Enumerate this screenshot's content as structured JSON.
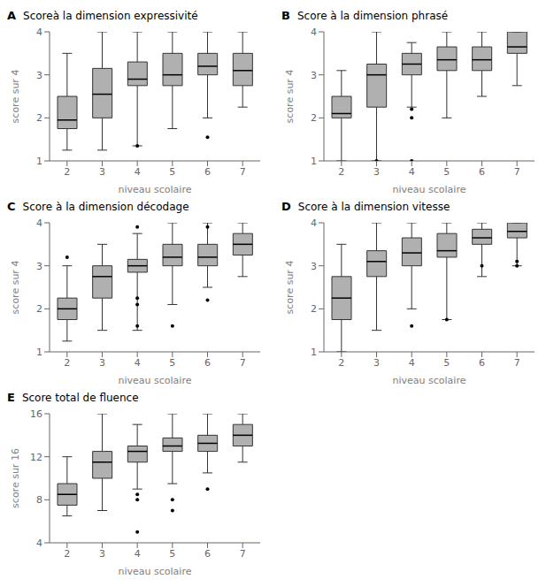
{
  "chart_data": [
    {
      "type": "box",
      "label": "A",
      "title": "Scoreà la dimension expressivité",
      "ylabel": "score sur 4",
      "xlabel": "niveau scolaire",
      "xlim": [
        1.5,
        7.5
      ],
      "xticks": [
        2,
        3,
        4,
        5,
        6,
        7
      ],
      "ylim": [
        1,
        4
      ],
      "yticks": [
        1,
        2,
        3,
        4
      ],
      "color": "#b0b0b0",
      "grid": false,
      "boxes": [
        {
          "x": 2,
          "q1": 1.75,
          "med": 1.95,
          "q3": 2.5,
          "whislo": 1.25,
          "whishi": 3.5,
          "fliers": []
        },
        {
          "x": 3,
          "q1": 2.0,
          "med": 2.55,
          "q3": 3.15,
          "whislo": 1.25,
          "whishi": 4.0,
          "fliers": []
        },
        {
          "x": 4,
          "q1": 2.75,
          "med": 2.9,
          "q3": 3.3,
          "whislo": 1.35,
          "whishi": 4.0,
          "fliers": [
            1.35
          ]
        },
        {
          "x": 5,
          "q1": 2.75,
          "med": 3.0,
          "q3": 3.5,
          "whislo": 1.75,
          "whishi": 4.0,
          "fliers": []
        },
        {
          "x": 6,
          "q1": 3.0,
          "med": 3.2,
          "q3": 3.5,
          "whislo": 2.0,
          "whishi": 4.0,
          "fliers": [
            1.55
          ]
        },
        {
          "x": 7,
          "q1": 2.75,
          "med": 3.1,
          "q3": 3.5,
          "whislo": 2.25,
          "whishi": 4.0,
          "fliers": []
        }
      ]
    },
    {
      "type": "box",
      "label": "B",
      "title": "Score à la dimension phrasé",
      "ylabel": "score sur 4",
      "xlabel": "niveau scolaire",
      "xlim": [
        1.5,
        7.5
      ],
      "xticks": [
        2,
        3,
        4,
        5,
        6,
        7
      ],
      "ylim": [
        1,
        4
      ],
      "yticks": [
        1,
        2,
        3,
        4
      ],
      "color": "#b0b0b0",
      "grid": false,
      "boxes": [
        {
          "x": 2,
          "q1": 2.0,
          "med": 2.1,
          "q3": 2.5,
          "whislo": 1.0,
          "whishi": 3.1,
          "fliers": []
        },
        {
          "x": 3,
          "q1": 2.25,
          "med": 3.0,
          "q3": 3.25,
          "whislo": 1.0,
          "whishi": 4.0,
          "fliers": [
            1.0
          ]
        },
        {
          "x": 4,
          "q1": 3.0,
          "med": 3.25,
          "q3": 3.5,
          "whislo": 2.25,
          "whishi": 3.75,
          "fliers": [
            1.0,
            2.0,
            2.2
          ]
        },
        {
          "x": 5,
          "q1": 3.1,
          "med": 3.35,
          "q3": 3.65,
          "whislo": 2.0,
          "whishi": 4.0,
          "fliers": []
        },
        {
          "x": 6,
          "q1": 3.1,
          "med": 3.35,
          "q3": 3.65,
          "whislo": 2.5,
          "whishi": 4.0,
          "fliers": []
        },
        {
          "x": 7,
          "q1": 3.5,
          "med": 3.65,
          "q3": 4.0,
          "whislo": 2.75,
          "whishi": 4.0,
          "fliers": []
        }
      ]
    },
    {
      "type": "box",
      "label": "C",
      "title": "Score à la dimension décodage",
      "ylabel": "score sur 4",
      "xlabel": "niveau scolaire",
      "xlim": [
        1.5,
        7.5
      ],
      "xticks": [
        2,
        3,
        4,
        5,
        6,
        7
      ],
      "ylim": [
        1,
        4
      ],
      "yticks": [
        1,
        2,
        3,
        4
      ],
      "color": "#b0b0b0",
      "grid": false,
      "boxes": [
        {
          "x": 2,
          "q1": 1.75,
          "med": 2.0,
          "q3": 2.25,
          "whislo": 1.25,
          "whishi": 3.0,
          "fliers": [
            3.2
          ]
        },
        {
          "x": 3,
          "q1": 2.25,
          "med": 2.75,
          "q3": 3.0,
          "whislo": 1.5,
          "whishi": 3.5,
          "fliers": []
        },
        {
          "x": 4,
          "q1": 2.85,
          "med": 3.0,
          "q3": 3.15,
          "whislo": 1.5,
          "whishi": 3.75,
          "fliers": [
            3.9,
            2.25,
            2.1,
            1.6
          ]
        },
        {
          "x": 5,
          "q1": 3.0,
          "med": 3.2,
          "q3": 3.5,
          "whislo": 2.1,
          "whishi": 4.0,
          "fliers": [
            1.6
          ]
        },
        {
          "x": 6,
          "q1": 3.0,
          "med": 3.2,
          "q3": 3.5,
          "whislo": 2.5,
          "whishi": 4.0,
          "fliers": [
            2.2,
            3.9
          ]
        },
        {
          "x": 7,
          "q1": 3.25,
          "med": 3.5,
          "q3": 3.75,
          "whislo": 2.75,
          "whishi": 4.0,
          "fliers": []
        }
      ]
    },
    {
      "type": "box",
      "label": "D",
      "title": "Score à la dimension vitesse",
      "ylabel": "score sur 4",
      "xlabel": "niveau scolaire",
      "xlim": [
        1.5,
        7.5
      ],
      "xticks": [
        2,
        3,
        4,
        5,
        6,
        7
      ],
      "ylim": [
        1,
        4
      ],
      "yticks": [
        1,
        2,
        3,
        4
      ],
      "color": "#b0b0b0",
      "grid": false,
      "boxes": [
        {
          "x": 2,
          "q1": 1.75,
          "med": 2.25,
          "q3": 2.75,
          "whislo": 1.0,
          "whishi": 3.5,
          "fliers": []
        },
        {
          "x": 3,
          "q1": 2.75,
          "med": 3.1,
          "q3": 3.35,
          "whislo": 1.5,
          "whishi": 4.0,
          "fliers": []
        },
        {
          "x": 4,
          "q1": 3.0,
          "med": 3.3,
          "q3": 3.65,
          "whislo": 2.0,
          "whishi": 4.0,
          "fliers": [
            1.6
          ]
        },
        {
          "x": 5,
          "q1": 3.2,
          "med": 3.35,
          "q3": 3.75,
          "whislo": 1.75,
          "whishi": 4.0,
          "fliers": [
            1.75
          ]
        },
        {
          "x": 6,
          "q1": 3.5,
          "med": 3.65,
          "q3": 3.85,
          "whislo": 2.75,
          "whishi": 4.0,
          "fliers": [
            3.0
          ]
        },
        {
          "x": 7,
          "q1": 3.65,
          "med": 3.8,
          "q3": 4.0,
          "whislo": 3.0,
          "whishi": 4.0,
          "fliers": [
            3.0,
            3.1
          ]
        }
      ]
    },
    {
      "type": "box",
      "label": "E",
      "title": "Score total de fluence",
      "ylabel": "score sur 16",
      "xlabel": "niveau scolaire",
      "xlim": [
        1.5,
        7.5
      ],
      "xticks": [
        2,
        3,
        4,
        5,
        6,
        7
      ],
      "ylim": [
        4,
        16
      ],
      "yticks": [
        4,
        8,
        12,
        16
      ],
      "color": "#b0b0b0",
      "grid": false,
      "boxes": [
        {
          "x": 2,
          "q1": 7.5,
          "med": 8.5,
          "q3": 9.5,
          "whislo": 6.5,
          "whishi": 12.0,
          "fliers": []
        },
        {
          "x": 3,
          "q1": 10.0,
          "med": 11.5,
          "q3": 12.5,
          "whislo": 7.0,
          "whishi": 16.0,
          "fliers": []
        },
        {
          "x": 4,
          "q1": 11.5,
          "med": 12.5,
          "q3": 13.0,
          "whislo": 9.0,
          "whishi": 15.0,
          "fliers": [
            8.5,
            8.0,
            5.0
          ]
        },
        {
          "x": 5,
          "q1": 12.5,
          "med": 13.0,
          "q3": 13.75,
          "whislo": 9.5,
          "whishi": 16.0,
          "fliers": [
            8.0,
            7.0
          ]
        },
        {
          "x": 6,
          "q1": 12.5,
          "med": 13.25,
          "q3": 14.0,
          "whislo": 10.5,
          "whishi": 16.0,
          "fliers": [
            9.0
          ]
        },
        {
          "x": 7,
          "q1": 13.0,
          "med": 14.0,
          "q3": 15.0,
          "whislo": 11.5,
          "whishi": 16.0,
          "fliers": []
        }
      ]
    }
  ]
}
